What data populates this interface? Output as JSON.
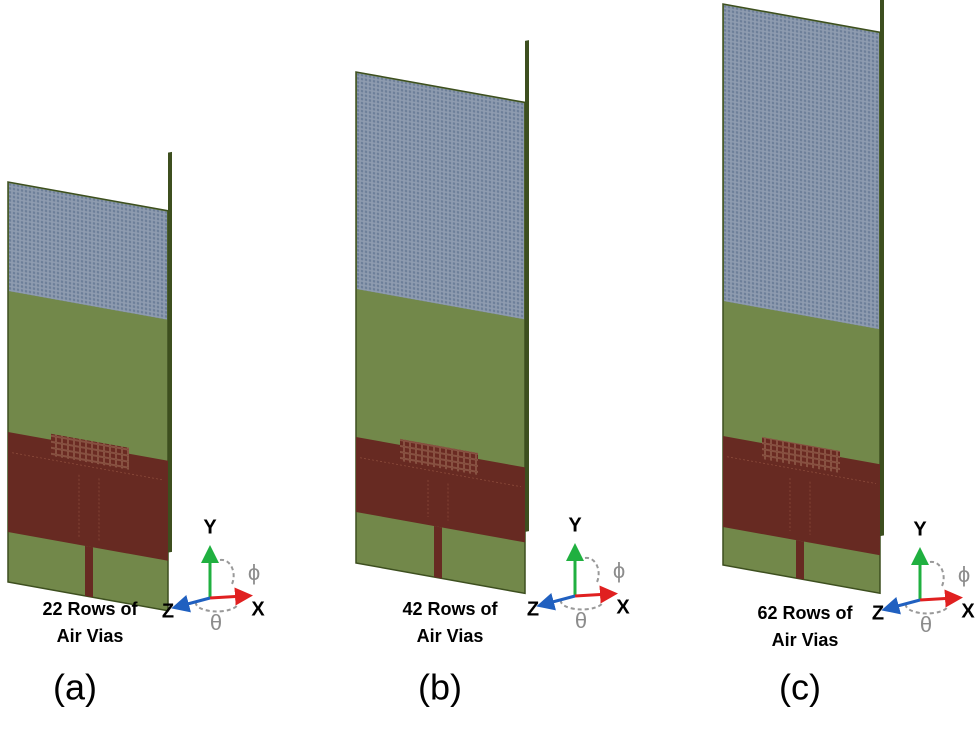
{
  "panels": [
    {
      "caption": [
        "22 Rows of",
        "Air Vias"
      ],
      "label": "(a)",
      "axes": {
        "y": "Y",
        "x": "X",
        "z": "Z",
        "phi": "ϕ",
        "theta": "θ"
      }
    },
    {
      "caption": [
        "42 Rows of",
        "Air Vias"
      ],
      "label": "(b)",
      "axes": {
        "y": "Y",
        "x": "X",
        "z": "Z",
        "phi": "ϕ",
        "theta": "θ"
      }
    },
    {
      "caption": [
        "62 Rows of",
        "Air Vias"
      ],
      "label": "(c)",
      "axes": {
        "y": "Y",
        "x": "X",
        "z": "Z",
        "phi": "ϕ",
        "theta": "θ"
      }
    }
  ]
}
